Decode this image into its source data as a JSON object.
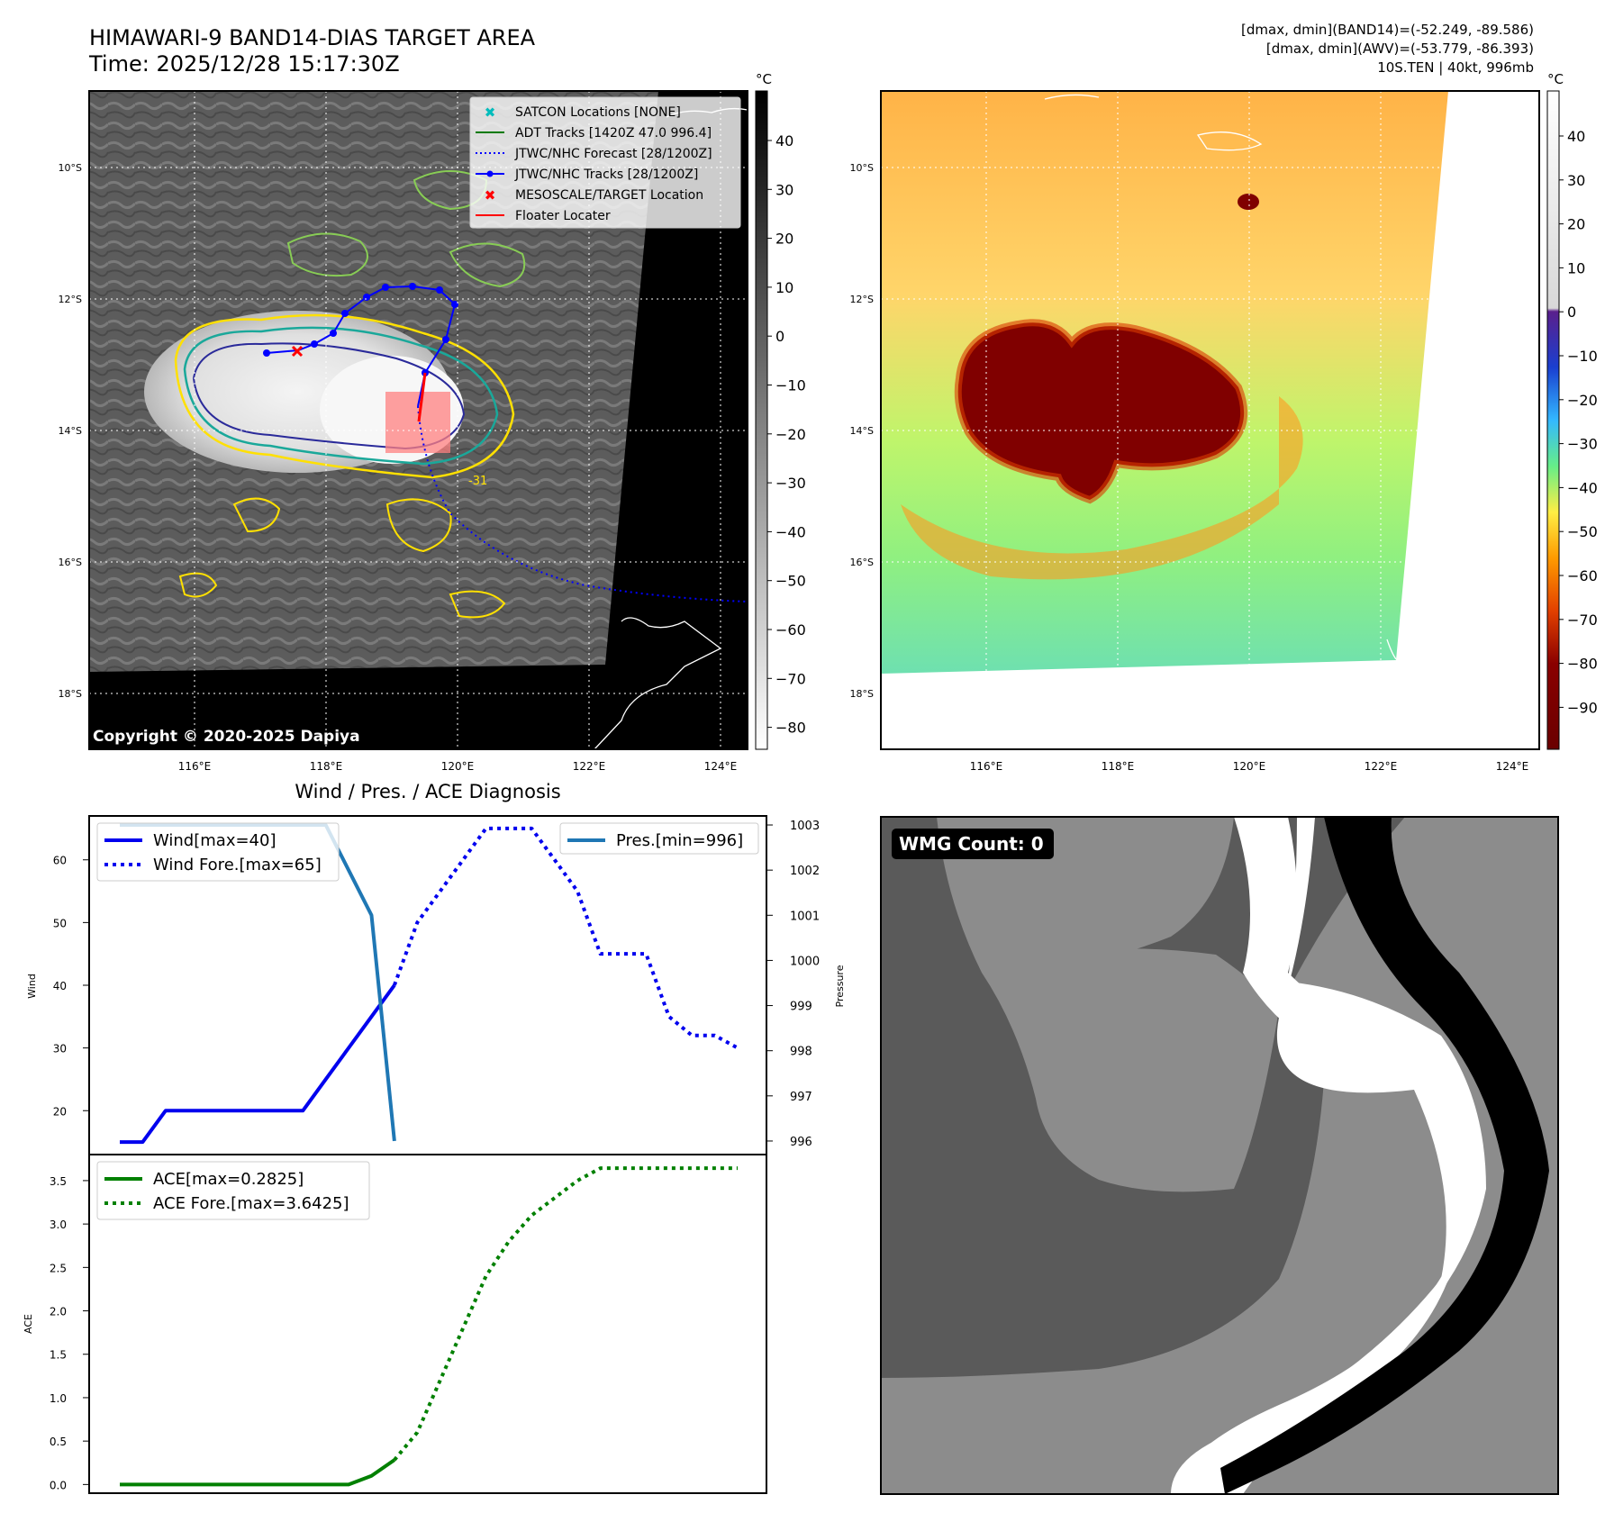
{
  "header": {
    "title_line1": "HIMAWARI-9 BAND14-DIAS TARGET AREA",
    "title_line2": "Time: 2025/12/28 15:17:30Z",
    "stats_line1": "[dmax, dmin](BAND14)=(-52.249, -89.586)",
    "stats_line2": "[dmax, dmin](AWV)=(-53.779, -86.393)",
    "stats_line3": "10S.TEN | 40kt, 996mb"
  },
  "map_axes": {
    "lat_labels": [
      "10°S",
      "12°S",
      "14°S",
      "16°S",
      "18°S"
    ],
    "lon_labels": [
      "116°E",
      "118°E",
      "120°E",
      "122°E",
      "124°E"
    ],
    "copyright": "Copyright © 2020-2025 Dapiya",
    "contour_label": "-31"
  },
  "colorbar_gray": {
    "unit": "°C",
    "ticks": [
      "40",
      "30",
      "20",
      "10",
      "0",
      "−10",
      "−20",
      "−30",
      "−40",
      "−50",
      "−60",
      "−70",
      "−80"
    ]
  },
  "colorbar_color": {
    "unit": "°C",
    "ticks": [
      "40",
      "30",
      "20",
      "10",
      "0",
      "−10",
      "−20",
      "−30",
      "−40",
      "−50",
      "−60",
      "−70",
      "−80",
      "−90"
    ]
  },
  "legend_map": [
    {
      "label": "SATCON Locations [NONE]",
      "color": "#00bcbc",
      "marker": "x"
    },
    {
      "label": "ADT Tracks [1420Z 47.0 996.4]",
      "color": "#007a00",
      "marker": "line"
    },
    {
      "label": "JTWC/NHC Forecast [28/1200Z]",
      "color": "#0000ff",
      "marker": "dotted"
    },
    {
      "label": "JTWC/NHC Tracks [28/1200Z]",
      "color": "#0000ff",
      "marker": "line-dot"
    },
    {
      "label": "MESOSCALE/TARGET Location",
      "color": "#ff0000",
      "marker": "x"
    },
    {
      "label": "Floater Locater",
      "color": "#ff0000",
      "marker": "line"
    }
  ],
  "wmg": {
    "label": "WMG Count: 0"
  },
  "chart_data": [
    {
      "type": "line",
      "title": "Wind / Pres. / ACE Diagnosis",
      "ylabel": "Wind",
      "ylim": [
        13,
        67
      ],
      "yticks": [
        20,
        30,
        40,
        50,
        60
      ],
      "y2label": "Pressure",
      "y2lim": [
        995.7,
        1003.2
      ],
      "y2ticks": [
        996,
        997,
        998,
        999,
        1000,
        1001,
        1002,
        1003
      ],
      "series": [
        {
          "name": "Wind[max=40]",
          "axis": "left",
          "style": "solid",
          "color": "#0000ee",
          "x": [
            0,
            1,
            2,
            3,
            4,
            5,
            6,
            7,
            8,
            9,
            10,
            11,
            12
          ],
          "y": [
            15,
            15,
            20,
            20,
            20,
            20,
            20,
            20,
            20,
            25,
            30,
            35,
            40
          ]
        },
        {
          "name": "Wind Fore.[max=65]",
          "axis": "left",
          "style": "dotted",
          "color": "#0000ee",
          "x": [
            12,
            13,
            14,
            15,
            16,
            17,
            18,
            19,
            20,
            21,
            22,
            23,
            24,
            25,
            26,
            27
          ],
          "y": [
            40,
            50,
            55,
            60,
            65,
            65,
            65,
            60,
            55,
            45,
            45,
            45,
            35,
            32,
            32,
            30
          ]
        },
        {
          "name": "Pres.[min=996]",
          "axis": "right",
          "style": "solid",
          "color": "#1f77b4",
          "x": [
            0,
            1,
            2,
            3,
            4,
            5,
            6,
            7,
            8,
            9,
            10,
            11,
            12
          ],
          "y": [
            1003,
            1003,
            1003,
            1003,
            1003,
            1003,
            1003,
            1003,
            1003,
            1003,
            1002,
            1001,
            996
          ]
        }
      ]
    },
    {
      "type": "line",
      "ylabel": "ACE",
      "ylim": [
        -0.1,
        3.8
      ],
      "yticks": [
        0.0,
        0.5,
        1.0,
        1.5,
        2.0,
        2.5,
        3.0,
        3.5
      ],
      "series": [
        {
          "name": "ACE[max=0.2825]",
          "style": "solid",
          "color": "#008000",
          "x": [
            0,
            1,
            2,
            3,
            4,
            5,
            6,
            7,
            8,
            9,
            10,
            11,
            12
          ],
          "y": [
            0,
            0,
            0,
            0,
            0,
            0,
            0,
            0,
            0,
            0,
            0,
            0.1,
            0.2825
          ]
        },
        {
          "name": "ACE Fore.[max=3.6425]",
          "style": "dotted",
          "color": "#008000",
          "x": [
            12,
            13,
            14,
            15,
            16,
            17,
            18,
            19,
            20,
            21,
            22,
            23,
            24,
            25,
            26,
            27
          ],
          "y": [
            0.2825,
            0.6,
            1.2,
            1.8,
            2.4,
            2.8,
            3.1,
            3.3,
            3.5,
            3.6425,
            3.6425,
            3.6425,
            3.6425,
            3.6425,
            3.6425,
            3.6425
          ]
        }
      ]
    }
  ]
}
